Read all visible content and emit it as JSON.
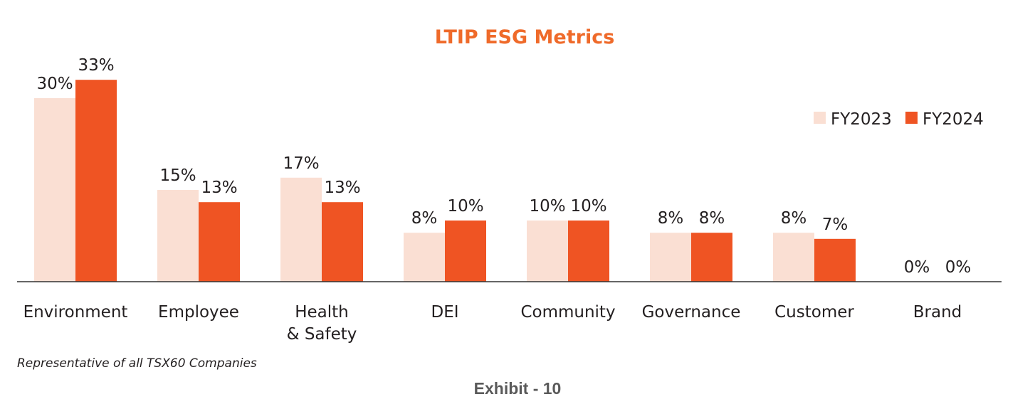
{
  "colors": {
    "fy2023": "#fadfd3",
    "fy2024": "#ef5423",
    "title": "#ef6a2a",
    "text": "#231f20",
    "axis": "#333333"
  },
  "chart_data": {
    "type": "bar",
    "title": "LTIP ESG Metrics",
    "xlabel": "",
    "ylabel": "",
    "ylim": [
      0,
      33
    ],
    "grid": false,
    "legend_position": "top-right",
    "categories": [
      [
        "Environment"
      ],
      [
        "Employee"
      ],
      [
        "Health",
        "& Safety"
      ],
      [
        "DEI"
      ],
      [
        "Community"
      ],
      [
        "Governance"
      ],
      [
        "Customer"
      ],
      [
        "Brand"
      ]
    ],
    "series": [
      {
        "name": "FY2023",
        "values": [
          30,
          15,
          17,
          8,
          10,
          8,
          8,
          0
        ],
        "labels": [
          "30%",
          "15%",
          "17%",
          "8%",
          "10%",
          "8%",
          "8%",
          "0%"
        ]
      },
      {
        "name": "FY2024",
        "values": [
          33,
          13,
          13,
          10,
          10,
          8,
          7,
          0
        ],
        "labels": [
          "33%",
          "13%",
          "13%",
          "10%",
          "10%",
          "8%",
          "7%",
          "0%"
        ]
      }
    ]
  },
  "footnote": "Representative of all TSX60 Companies",
  "exhibit": "Exhibit - 10"
}
